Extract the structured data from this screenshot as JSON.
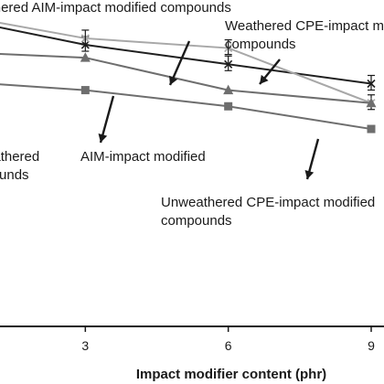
{
  "chart_data": {
    "type": "line",
    "xlabel": "Impact modifier content (phr)",
    "ylabel": "",
    "x_ticks": [
      3,
      6,
      9
    ],
    "xlim": [
      0,
      9
    ],
    "ylim": [
      0,
      10
    ],
    "legend": "none",
    "series": [
      {
        "name": "Weathered AIM-impact modified compounds",
        "color": "#202020",
        "marker": "x",
        "x": [
          0,
          3,
          6,
          9
        ],
        "y": [
          9.6,
          8.7,
          8.1,
          7.5
        ]
      },
      {
        "name": "Weathered CPE-impact modified compounds",
        "color": "#a8a8a8",
        "marker": "x",
        "x": [
          0,
          3,
          6,
          9
        ],
        "y": [
          9.7,
          8.9,
          8.6,
          6.9
        ]
      },
      {
        "name": "Unweathered AIM-impact modified compounds",
        "color": "#6e6e6e",
        "marker": "triangle",
        "x": [
          0,
          3,
          6,
          9
        ],
        "y": [
          8.5,
          8.3,
          7.3,
          6.9
        ]
      },
      {
        "name": "Unweathered CPE-impact modified compounds",
        "color": "#6e6e6e",
        "marker": "square",
        "x": [
          0,
          3,
          6,
          9
        ],
        "y": [
          7.6,
          7.3,
          6.8,
          6.1
        ]
      }
    ],
    "annotations": [
      "Weathered  AIM-impact modified compounds",
      "Weathered CPE-impact modified\ncompounds",
      "Unweathered\ncompounds",
      "AIM-impact modified",
      "Unweathered CPE-impact modified\ncompounds"
    ]
  }
}
